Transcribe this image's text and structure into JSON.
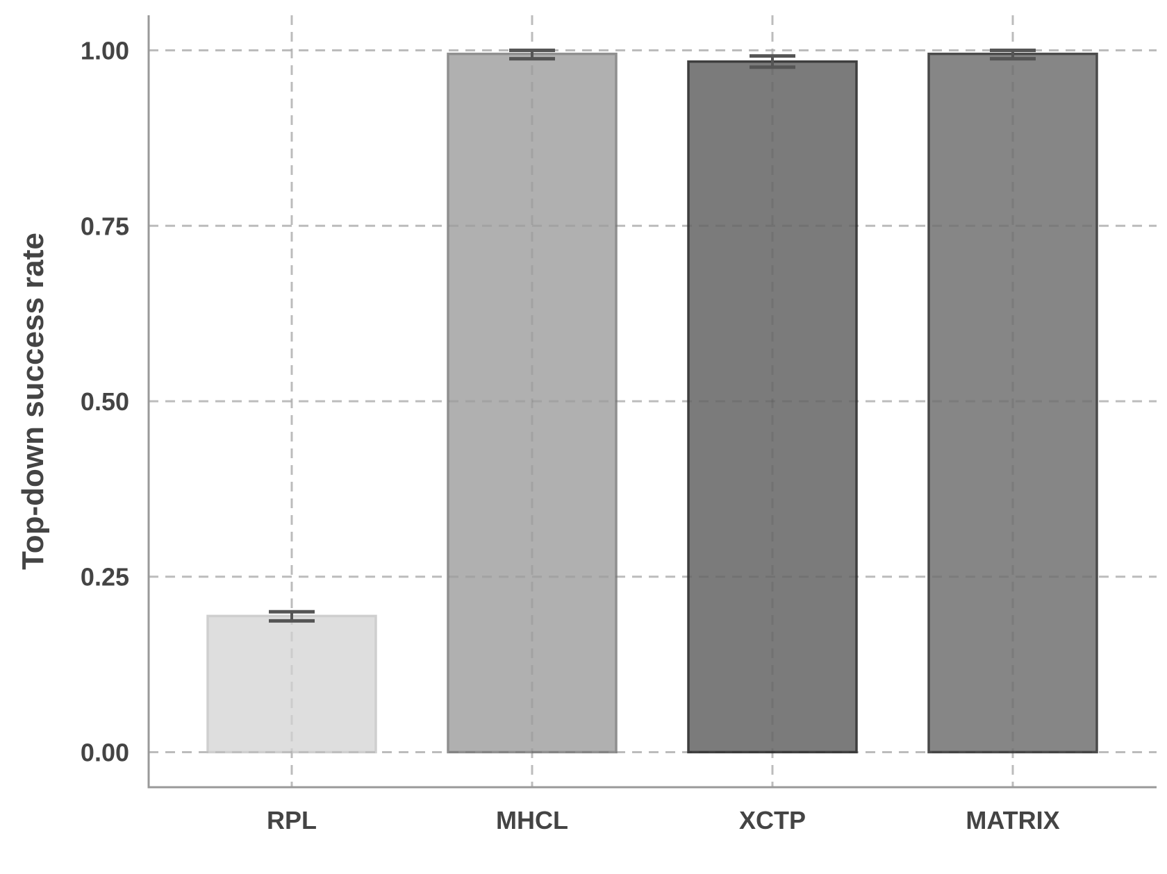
{
  "chart_data": {
    "type": "bar",
    "title": "",
    "xlabel": "",
    "ylabel": "Top-down success rate",
    "categories": [
      "RPL",
      "MHCL",
      "XCTP",
      "MATRIX"
    ],
    "values": [
      0.194,
      0.995,
      0.984,
      0.995
    ],
    "error_low": [
      0.187,
      0.988,
      0.976,
      0.988
    ],
    "error_high": [
      0.2,
      1.0,
      0.992,
      1.0
    ],
    "ylim": [
      -0.05,
      1.05
    ],
    "yticks": [
      0.0,
      0.25,
      0.5,
      0.75,
      1.0
    ],
    "ytick_labels": [
      "0.00",
      "0.25",
      "0.50",
      "0.75",
      "1.00"
    ],
    "grid": true,
    "legend": "none",
    "bar_fill_colors": [
      "#dedede",
      "#b0b0b0",
      "#7b7b7b",
      "#868686"
    ],
    "bar_edge_colors": [
      "#cfcfcf",
      "#8f8f8f",
      "#3f3f3f",
      "#4a4a4a"
    ],
    "error_bar_color": "#555555",
    "grid_color": "#cccccc",
    "axis_color": "#999999",
    "text_color": "#444444"
  }
}
